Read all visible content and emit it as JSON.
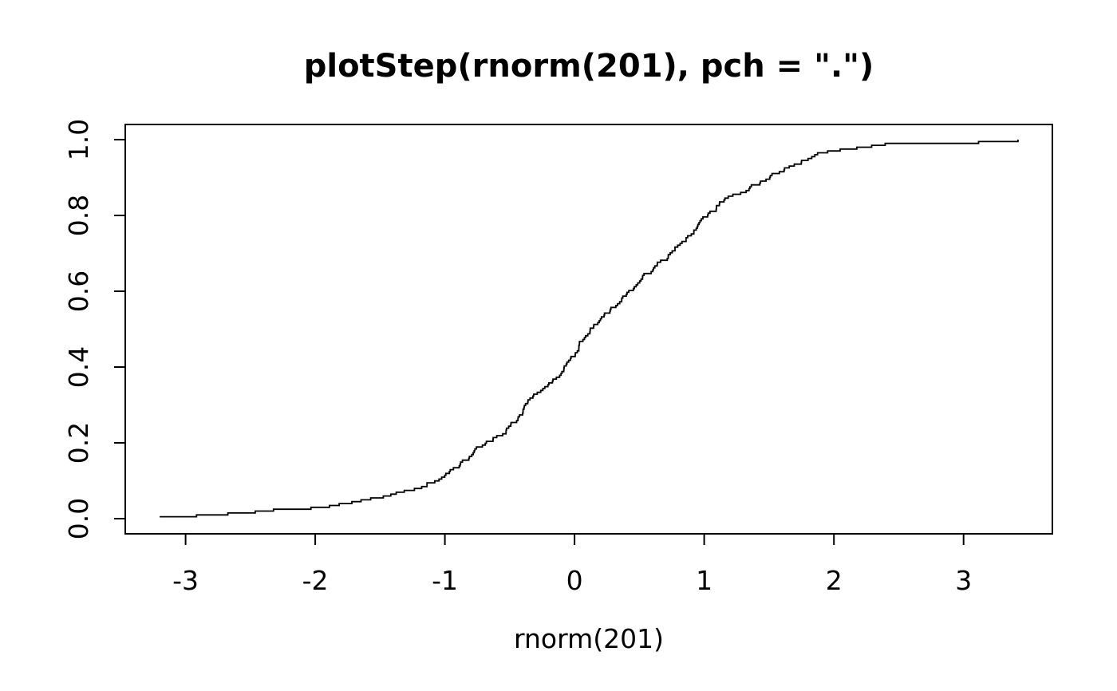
{
  "chart_data": {
    "type": "line",
    "subtype": "ecdf-step",
    "title": "plotStep(rnorm(201), pch = \".\")",
    "xlabel": "rnorm(201)",
    "ylabel": "",
    "n": 201,
    "x_ticks": {
      "values": [
        -3,
        -2,
        -1,
        0,
        1,
        2,
        3
      ],
      "labels": [
        "-3",
        "-2",
        "-1",
        "0",
        "1",
        "2",
        "3"
      ]
    },
    "y_ticks": {
      "values": [
        0,
        0.2,
        0.4,
        0.6,
        0.8,
        1.0
      ],
      "labels": [
        "0.0",
        "0.2",
        "0.4",
        "0.6",
        "0.8",
        "1.0"
      ]
    },
    "xlim": [
      -3.465,
      3.685
    ],
    "ylim": [
      -0.04,
      1.04
    ],
    "x_data_range": [
      -3.2,
      3.42
    ],
    "grid": false,
    "legend_position": "none",
    "line_color": "#000000",
    "axis_color": "#000000",
    "background_color": "#ffffff",
    "ecdf_anchors": [
      [
        -3.2,
        0.005
      ],
      [
        -2.91,
        0.01
      ],
      [
        -2.78,
        0.013
      ],
      [
        -2.6,
        0.017
      ],
      [
        -2.38,
        0.022
      ],
      [
        -2.22,
        0.028
      ],
      [
        -1.92,
        0.031
      ],
      [
        -1.82,
        0.04
      ],
      [
        -1.7,
        0.047
      ],
      [
        -1.58,
        0.053
      ],
      [
        -1.48,
        0.061
      ],
      [
        -1.36,
        0.07
      ],
      [
        -1.25,
        0.078
      ],
      [
        -1.14,
        0.09
      ],
      [
        -1.04,
        0.105
      ],
      [
        -0.95,
        0.125
      ],
      [
        -0.86,
        0.15
      ],
      [
        -0.78,
        0.175
      ],
      [
        -0.7,
        0.198
      ],
      [
        -0.62,
        0.212
      ],
      [
        -0.54,
        0.23
      ],
      [
        -0.47,
        0.252
      ],
      [
        -0.4,
        0.285
      ],
      [
        -0.34,
        0.32
      ],
      [
        -0.26,
        0.342
      ],
      [
        -0.18,
        0.36
      ],
      [
        -0.1,
        0.39
      ],
      [
        0.0,
        0.44
      ],
      [
        0.08,
        0.48
      ],
      [
        0.17,
        0.52
      ],
      [
        0.26,
        0.545
      ],
      [
        0.35,
        0.575
      ],
      [
        0.44,
        0.607
      ],
      [
        0.5,
        0.63
      ],
      [
        0.62,
        0.663
      ],
      [
        0.7,
        0.688
      ],
      [
        0.8,
        0.721
      ],
      [
        0.9,
        0.752
      ],
      [
        1.0,
        0.796
      ],
      [
        1.1,
        0.82
      ],
      [
        1.18,
        0.85
      ],
      [
        1.28,
        0.862
      ],
      [
        1.38,
        0.88
      ],
      [
        1.48,
        0.9
      ],
      [
        1.6,
        0.92
      ],
      [
        1.72,
        0.94
      ],
      [
        1.85,
        0.962
      ],
      [
        2.02,
        0.973
      ],
      [
        2.24,
        0.983
      ],
      [
        2.43,
        0.9925
      ],
      [
        3.08,
        0.9949
      ],
      [
        3.42,
        1.0
      ]
    ],
    "jitter": 0.028,
    "seed": 42
  }
}
